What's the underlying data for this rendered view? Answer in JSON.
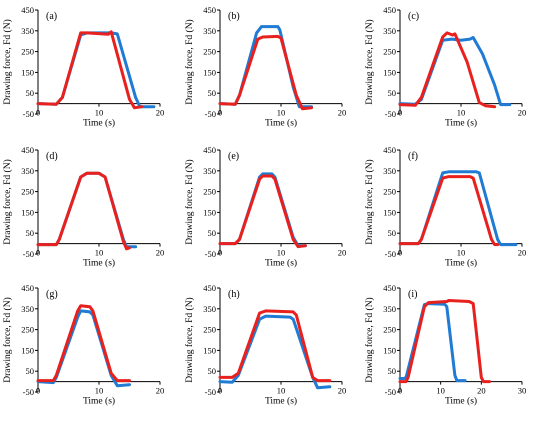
{
  "figure": {
    "colors": {
      "blue": "#1f7bd4",
      "red": "#e8201e",
      "axis": "#000000"
    },
    "ylabel": "Drawing force, Fd (N)",
    "xlabel": "Time (s)"
  },
  "chart_data": [
    {
      "type": "line",
      "panel_label": "(a)",
      "xlim": [
        0,
        20
      ],
      "ylim": [
        -50,
        450
      ],
      "xticks": [
        0,
        10,
        20
      ],
      "yticks": [
        -50,
        50,
        150,
        250,
        350,
        450
      ],
      "xlabel": "Time (s)",
      "ylabel": "Drawing force, Fd (N)",
      "series": [
        {
          "color": "blue",
          "x": [
            0,
            3,
            4,
            7,
            8,
            12,
            13,
            16,
            16.7,
            19
          ],
          "y": [
            0,
            -3,
            30,
            330,
            340,
            340,
            335,
            30,
            -15,
            -15
          ]
        },
        {
          "color": "red",
          "x": [
            0,
            3,
            4,
            7,
            8,
            11.5,
            12,
            15,
            15.8,
            17
          ],
          "y": [
            0,
            -3,
            30,
            340,
            340,
            333,
            345,
            20,
            -20,
            -15
          ]
        }
      ]
    },
    {
      "type": "line",
      "panel_label": "(b)",
      "xlim": [
        0,
        20
      ],
      "ylim": [
        -50,
        450
      ],
      "xticks": [
        0,
        10,
        20
      ],
      "yticks": [
        -50,
        50,
        150,
        250,
        350,
        450
      ],
      "xlabel": "Time (s)",
      "ylabel": "Drawing force, Fd (N)",
      "series": [
        {
          "color": "blue",
          "x": [
            0,
            2.5,
            3.2,
            6,
            6.8,
            9.5,
            9.8,
            12,
            13,
            15
          ],
          "y": [
            0,
            -3,
            40,
            340,
            370,
            370,
            355,
            80,
            -15,
            -15
          ]
        },
        {
          "color": "red",
          "x": [
            0,
            2.5,
            3.2,
            6.2,
            7,
            9.5,
            10,
            12.5,
            13.5,
            15
          ],
          "y": [
            0,
            -3,
            40,
            310,
            320,
            323,
            315,
            40,
            -25,
            -20
          ]
        }
      ]
    },
    {
      "type": "line",
      "panel_label": "(c)",
      "xlim": [
        0,
        20
      ],
      "ylim": [
        -50,
        450
      ],
      "xticks": [
        0,
        10,
        20
      ],
      "yticks": [
        -50,
        50,
        150,
        250,
        350,
        450
      ],
      "xlabel": "Time (s)",
      "ylabel": "Drawing force, Fd (N)",
      "series": [
        {
          "color": "blue",
          "x": [
            0,
            2.5,
            3.5,
            7,
            8.5,
            10,
            11.5,
            12,
            13.5,
            15.5,
            16.5,
            18
          ],
          "y": [
            0,
            -3,
            20,
            305,
            310,
            305,
            310,
            318,
            240,
            90,
            -5,
            -5
          ]
        },
        {
          "color": "red",
          "x": [
            0,
            2.5,
            3.5,
            7,
            7.7,
            8.6,
            9,
            11,
            13,
            14,
            15.5
          ],
          "y": [
            -5,
            -8,
            30,
            320,
            340,
            330,
            335,
            200,
            5,
            -10,
            -15
          ]
        }
      ]
    },
    {
      "type": "line",
      "panel_label": "(d)",
      "xlim": [
        0,
        20
      ],
      "ylim": [
        -50,
        450
      ],
      "xticks": [
        0,
        10,
        20
      ],
      "yticks": [
        -50,
        50,
        150,
        250,
        350,
        450
      ],
      "xlabel": "Time (s)",
      "ylabel": "Drawing force, Fd (N)",
      "series": [
        {
          "color": "blue",
          "x": [
            0,
            3,
            3.5,
            7,
            8,
            10,
            11,
            14,
            14.5,
            16
          ],
          "y": [
            -5,
            -5,
            20,
            320,
            338,
            338,
            320,
            20,
            -15,
            -15
          ]
        },
        {
          "color": "red",
          "x": [
            0,
            3,
            3.5,
            7,
            8,
            10,
            11,
            14,
            14.5,
            15
          ],
          "y": [
            -5,
            -5,
            20,
            320,
            338,
            338,
            320,
            10,
            -25,
            -20
          ]
        }
      ]
    },
    {
      "type": "line",
      "panel_label": "(e)",
      "xlim": [
        0,
        20
      ],
      "ylim": [
        -50,
        450
      ],
      "xticks": [
        0,
        10,
        20
      ],
      "yticks": [
        -50,
        50,
        150,
        250,
        350,
        450
      ],
      "xlabel": "Time (s)",
      "ylabel": "Drawing force, Fd (N)",
      "series": [
        {
          "color": "blue",
          "x": [
            0,
            2.5,
            3.2,
            6.5,
            7,
            8.5,
            9,
            12,
            12.8,
            14
          ],
          "y": [
            0,
            0,
            20,
            320,
            335,
            335,
            320,
            30,
            -10,
            -10
          ]
        },
        {
          "color": "red",
          "x": [
            0,
            2.5,
            3.2,
            6.5,
            7,
            8.5,
            9,
            12,
            12.8,
            14
          ],
          "y": [
            0,
            0,
            20,
            310,
            325,
            325,
            310,
            20,
            -15,
            -10
          ]
        }
      ]
    },
    {
      "type": "line",
      "panel_label": "(f)",
      "xlim": [
        0,
        20
      ],
      "ylim": [
        -50,
        450
      ],
      "xticks": [
        0,
        10,
        20
      ],
      "yticks": [
        -50,
        50,
        150,
        250,
        350,
        450
      ],
      "xlabel": "Time (s)",
      "ylabel": "Drawing force, Fd (N)",
      "series": [
        {
          "color": "blue",
          "x": [
            0,
            3,
            3.5,
            7,
            8,
            12.5,
            13,
            16,
            16.5,
            19
          ],
          "y": [
            0,
            0,
            20,
            340,
            345,
            345,
            340,
            20,
            -5,
            -5
          ]
        },
        {
          "color": "red",
          "x": [
            0,
            3,
            3.5,
            7,
            8,
            11.5,
            12,
            15,
            15.5,
            16
          ],
          "y": [
            0,
            0,
            20,
            315,
            322,
            322,
            315,
            20,
            -5,
            -5
          ]
        }
      ]
    },
    {
      "type": "line",
      "panel_label": "(g)",
      "xlim": [
        0,
        20
      ],
      "ylim": [
        -50,
        450
      ],
      "xticks": [
        0,
        10,
        20
      ],
      "yticks": [
        -50,
        50,
        150,
        250,
        350,
        450
      ],
      "xlabel": "Time (s)",
      "ylabel": "Drawing force, Fd (N)",
      "series": [
        {
          "color": "blue",
          "x": [
            0,
            2.5,
            3,
            6.5,
            7,
            8.5,
            9,
            12,
            13,
            15
          ],
          "y": [
            0,
            -5,
            20,
            310,
            340,
            335,
            320,
            30,
            -20,
            -15
          ]
        },
        {
          "color": "red",
          "x": [
            0,
            2.5,
            3,
            6.5,
            7,
            8.5,
            9,
            12,
            13,
            15
          ],
          "y": [
            5,
            5,
            30,
            340,
            365,
            360,
            340,
            40,
            5,
            5
          ]
        }
      ]
    },
    {
      "type": "line",
      "panel_label": "(h)",
      "xlim": [
        0,
        20
      ],
      "ylim": [
        -50,
        450
      ],
      "xticks": [
        0,
        10,
        20
      ],
      "yticks": [
        -50,
        50,
        150,
        250,
        350,
        450
      ],
      "xlabel": "Time (s)",
      "ylabel": "Drawing force, Fd (N)",
      "series": [
        {
          "color": "blue",
          "x": [
            0,
            2,
            3,
            6.5,
            7.5,
            11.5,
            12,
            15.2,
            16,
            18
          ],
          "y": [
            0,
            -3,
            30,
            300,
            315,
            310,
            300,
            20,
            -30,
            -25
          ]
        },
        {
          "color": "red",
          "x": [
            0,
            2,
            3,
            6.5,
            7.5,
            12,
            12.5,
            15.2,
            16,
            18
          ],
          "y": [
            20,
            20,
            40,
            330,
            340,
            335,
            320,
            20,
            5,
            5
          ]
        }
      ]
    },
    {
      "type": "line",
      "panel_label": "(i)",
      "xlim": [
        0,
        30
      ],
      "ylim": [
        -50,
        450
      ],
      "xticks": [
        0,
        10,
        20,
        30
      ],
      "yticks": [
        -50,
        50,
        150,
        250,
        350,
        450
      ],
      "xlabel": "Time (s)",
      "ylabel": "Drawing force, Fd (N)",
      "series": [
        {
          "color": "blue",
          "x": [
            0,
            1,
            1.5,
            6,
            7,
            11,
            11.5,
            13.5,
            14,
            16
          ],
          "y": [
            15,
            15,
            20,
            370,
            375,
            372,
            360,
            30,
            5,
            5
          ]
        },
        {
          "color": "red",
          "x": [
            0,
            1.5,
            2,
            6,
            7,
            11.5,
            12,
            17,
            18,
            20,
            20.5,
            22
          ],
          "y": [
            0,
            0,
            20,
            360,
            380,
            385,
            390,
            385,
            375,
            20,
            0,
            0
          ]
        }
      ]
    }
  ]
}
